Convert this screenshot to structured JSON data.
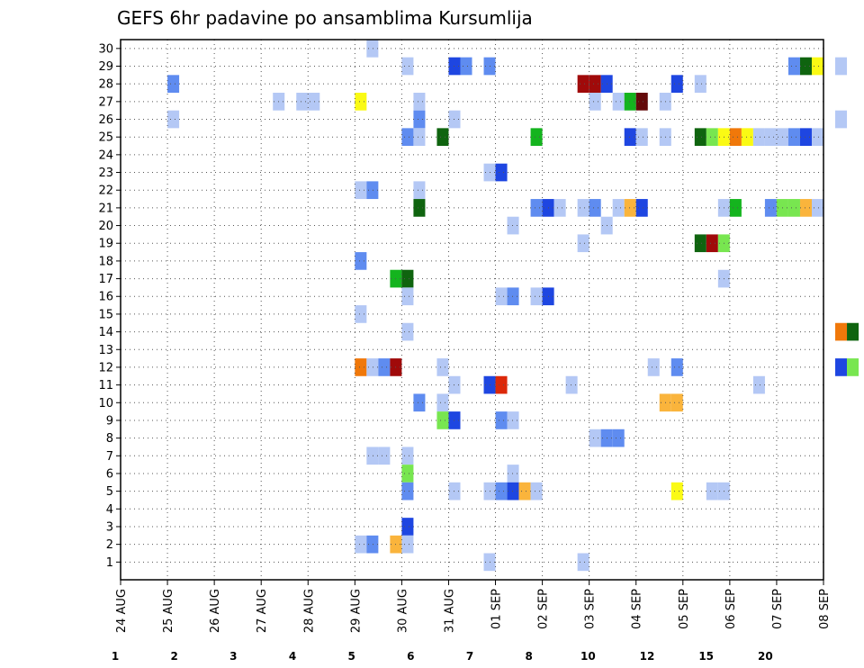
{
  "chart_data": {
    "type": "heatmap",
    "title": "GEFS 6hr padavine po ansamblima Kursumlija",
    "x_tick_labels": [
      "24 AUG",
      "25 AUG",
      "26 AUG",
      "27 AUG",
      "28 AUG",
      "29 AUG",
      "30 AUG",
      "31 AUG",
      "01 SEP",
      "02 SEP",
      "03 SEP",
      "04 SEP",
      "05 SEP",
      "06 SEP",
      "07 SEP",
      "08 SEP"
    ],
    "y_tick_labels": [
      "1",
      "2",
      "3",
      "4",
      "5",
      "6",
      "7",
      "8",
      "9",
      "10",
      "11",
      "12",
      "13",
      "14",
      "15",
      "16",
      "17",
      "18",
      "19",
      "20",
      "21",
      "22",
      "23",
      "24",
      "25",
      "26",
      "27",
      "28",
      "29",
      "30"
    ],
    "time_step_hours": 6,
    "legend": {
      "bounds": [
        "1",
        "2",
        "3",
        "4",
        "5",
        "6",
        "7",
        "8",
        "10",
        "12",
        "15",
        "20"
      ],
      "colors": [
        "#b4c8f5",
        "#5f8cf0",
        "#1e46e1",
        "#78e650",
        "#14b41e",
        "#0f640f",
        "#fafa14",
        "#fab43c",
        "#f0780a",
        "#dc280a",
        "#a00a0a",
        "#640a0a"
      ]
    },
    "grid": true,
    "cells_note": "each cell: member (y), 6-hour step index from 24 AUG 00z (t), colour class c (1-12 per legend)",
    "cells": [
      {
        "m": 30,
        "t": 21,
        "c": 1
      },
      {
        "m": 29,
        "t": 24,
        "c": 1
      },
      {
        "m": 29,
        "t": 28,
        "c": 3
      },
      {
        "m": 29,
        "t": 29,
        "c": 2
      },
      {
        "m": 29,
        "t": 31,
        "c": 2
      },
      {
        "m": 29,
        "t": 57,
        "c": 2
      },
      {
        "m": 29,
        "t": 58,
        "c": 6
      },
      {
        "m": 29,
        "t": 59,
        "c": 7
      },
      {
        "m": 29,
        "t": 61,
        "c": 1
      },
      {
        "m": 28,
        "t": 4,
        "c": 2
      },
      {
        "m": 28,
        "t": 39,
        "c": 11
      },
      {
        "m": 28,
        "t": 40,
        "c": 11
      },
      {
        "m": 28,
        "t": 41,
        "c": 3
      },
      {
        "m": 28,
        "t": 47,
        "c": 3
      },
      {
        "m": 28,
        "t": 49,
        "c": 1
      },
      {
        "m": 27,
        "t": 13,
        "c": 1
      },
      {
        "m": 27,
        "t": 15,
        "c": 1
      },
      {
        "m": 27,
        "t": 16,
        "c": 1
      },
      {
        "m": 27,
        "t": 20,
        "c": 7
      },
      {
        "m": 27,
        "t": 25,
        "c": 1
      },
      {
        "m": 27,
        "t": 40,
        "c": 1
      },
      {
        "m": 27,
        "t": 42,
        "c": 1
      },
      {
        "m": 27,
        "t": 43,
        "c": 5
      },
      {
        "m": 27,
        "t": 44,
        "c": 12
      },
      {
        "m": 27,
        "t": 46,
        "c": 1
      },
      {
        "m": 26,
        "t": 4,
        "c": 1
      },
      {
        "m": 26,
        "t": 25,
        "c": 2
      },
      {
        "m": 26,
        "t": 28,
        "c": 1
      },
      {
        "m": 26,
        "t": 61,
        "c": 1
      },
      {
        "m": 25,
        "t": 24,
        "c": 2
      },
      {
        "m": 25,
        "t": 25,
        "c": 1
      },
      {
        "m": 25,
        "t": 27,
        "c": 6
      },
      {
        "m": 25,
        "t": 35,
        "c": 5
      },
      {
        "m": 25,
        "t": 43,
        "c": 3
      },
      {
        "m": 25,
        "t": 44,
        "c": 1
      },
      {
        "m": 25,
        "t": 46,
        "c": 1
      },
      {
        "m": 25,
        "t": 49,
        "c": 6
      },
      {
        "m": 25,
        "t": 50,
        "c": 4
      },
      {
        "m": 25,
        "t": 51,
        "c": 7
      },
      {
        "m": 25,
        "t": 52,
        "c": 9
      },
      {
        "m": 25,
        "t": 53,
        "c": 7
      },
      {
        "m": 25,
        "t": 54,
        "c": 1
      },
      {
        "m": 25,
        "t": 55,
        "c": 1
      },
      {
        "m": 25,
        "t": 56,
        "c": 1
      },
      {
        "m": 25,
        "t": 57,
        "c": 2
      },
      {
        "m": 25,
        "t": 58,
        "c": 3
      },
      {
        "m": 25,
        "t": 59,
        "c": 1
      },
      {
        "m": 23,
        "t": 31,
        "c": 1
      },
      {
        "m": 23,
        "t": 32,
        "c": 3
      },
      {
        "m": 22,
        "t": 20,
        "c": 1
      },
      {
        "m": 22,
        "t": 21,
        "c": 2
      },
      {
        "m": 22,
        "t": 25,
        "c": 1
      },
      {
        "m": 21,
        "t": 25,
        "c": 6
      },
      {
        "m": 21,
        "t": 35,
        "c": 2
      },
      {
        "m": 21,
        "t": 36,
        "c": 3
      },
      {
        "m": 21,
        "t": 37,
        "c": 1
      },
      {
        "m": 21,
        "t": 39,
        "c": 1
      },
      {
        "m": 21,
        "t": 40,
        "c": 2
      },
      {
        "m": 21,
        "t": 42,
        "c": 1
      },
      {
        "m": 21,
        "t": 43,
        "c": 8
      },
      {
        "m": 21,
        "t": 44,
        "c": 3
      },
      {
        "m": 21,
        "t": 51,
        "c": 1
      },
      {
        "m": 21,
        "t": 52,
        "c": 5
      },
      {
        "m": 21,
        "t": 55,
        "c": 2
      },
      {
        "m": 21,
        "t": 56,
        "c": 4
      },
      {
        "m": 21,
        "t": 57,
        "c": 4
      },
      {
        "m": 21,
        "t": 58,
        "c": 8
      },
      {
        "m": 21,
        "t": 59,
        "c": 1
      },
      {
        "m": 20,
        "t": 33,
        "c": 1
      },
      {
        "m": 20,
        "t": 41,
        "c": 1
      },
      {
        "m": 19,
        "t": 39,
        "c": 1
      },
      {
        "m": 19,
        "t": 49,
        "c": 6
      },
      {
        "m": 19,
        "t": 50,
        "c": 11
      },
      {
        "m": 19,
        "t": 51,
        "c": 4
      },
      {
        "m": 18,
        "t": 20,
        "c": 2
      },
      {
        "m": 17,
        "t": 23,
        "c": 5
      },
      {
        "m": 17,
        "t": 24,
        "c": 6
      },
      {
        "m": 17,
        "t": 51,
        "c": 1
      },
      {
        "m": 16,
        "t": 24,
        "c": 1
      },
      {
        "m": 16,
        "t": 32,
        "c": 1
      },
      {
        "m": 16,
        "t": 33,
        "c": 2
      },
      {
        "m": 16,
        "t": 35,
        "c": 1
      },
      {
        "m": 16,
        "t": 36,
        "c": 3
      },
      {
        "m": 15,
        "t": 20,
        "c": 1
      },
      {
        "m": 14,
        "t": 24,
        "c": 1
      },
      {
        "m": 14,
        "t": 61,
        "c": 9
      },
      {
        "m": 14,
        "t": 62,
        "c": 6
      },
      {
        "m": 12,
        "t": 20,
        "c": 9
      },
      {
        "m": 12,
        "t": 21,
        "c": 1
      },
      {
        "m": 12,
        "t": 22,
        "c": 2
      },
      {
        "m": 12,
        "t": 23,
        "c": 11
      },
      {
        "m": 12,
        "t": 27,
        "c": 1
      },
      {
        "m": 12,
        "t": 45,
        "c": 1
      },
      {
        "m": 12,
        "t": 47,
        "c": 2
      },
      {
        "m": 12,
        "t": 61,
        "c": 3
      },
      {
        "m": 12,
        "t": 62,
        "c": 4
      },
      {
        "m": 11,
        "t": 28,
        "c": 1
      },
      {
        "m": 11,
        "t": 31,
        "c": 3
      },
      {
        "m": 11,
        "t": 32,
        "c": 10
      },
      {
        "m": 11,
        "t": 38,
        "c": 1
      },
      {
        "m": 11,
        "t": 54,
        "c": 1
      },
      {
        "m": 10,
        "t": 25,
        "c": 2
      },
      {
        "m": 10,
        "t": 27,
        "c": 1
      },
      {
        "m": 10,
        "t": 46,
        "c": 8
      },
      {
        "m": 10,
        "t": 47,
        "c": 8
      },
      {
        "m": 9,
        "t": 27,
        "c": 4
      },
      {
        "m": 9,
        "t": 28,
        "c": 3
      },
      {
        "m": 9,
        "t": 32,
        "c": 2
      },
      {
        "m": 9,
        "t": 33,
        "c": 1
      },
      {
        "m": 8,
        "t": 40,
        "c": 1
      },
      {
        "m": 8,
        "t": 41,
        "c": 2
      },
      {
        "m": 8,
        "t": 42,
        "c": 2
      },
      {
        "m": 7,
        "t": 21,
        "c": 1
      },
      {
        "m": 7,
        "t": 22,
        "c": 1
      },
      {
        "m": 7,
        "t": 24,
        "c": 1
      },
      {
        "m": 6,
        "t": 24,
        "c": 4
      },
      {
        "m": 6,
        "t": 33,
        "c": 1
      },
      {
        "m": 5,
        "t": 24,
        "c": 2
      },
      {
        "m": 5,
        "t": 28,
        "c": 1
      },
      {
        "m": 5,
        "t": 31,
        "c": 1
      },
      {
        "m": 5,
        "t": 32,
        "c": 2
      },
      {
        "m": 5,
        "t": 33,
        "c": 3
      },
      {
        "m": 5,
        "t": 34,
        "c": 8
      },
      {
        "m": 5,
        "t": 35,
        "c": 1
      },
      {
        "m": 5,
        "t": 47,
        "c": 7
      },
      {
        "m": 5,
        "t": 50,
        "c": 1
      },
      {
        "m": 5,
        "t": 51,
        "c": 1
      },
      {
        "m": 3,
        "t": 24,
        "c": 3
      },
      {
        "m": 2,
        "t": 20,
        "c": 1
      },
      {
        "m": 2,
        "t": 21,
        "c": 2
      },
      {
        "m": 2,
        "t": 23,
        "c": 8
      },
      {
        "m": 2,
        "t": 24,
        "c": 1
      },
      {
        "m": 1,
        "t": 31,
        "c": 1
      },
      {
        "m": 1,
        "t": 39,
        "c": 1
      }
    ]
  }
}
